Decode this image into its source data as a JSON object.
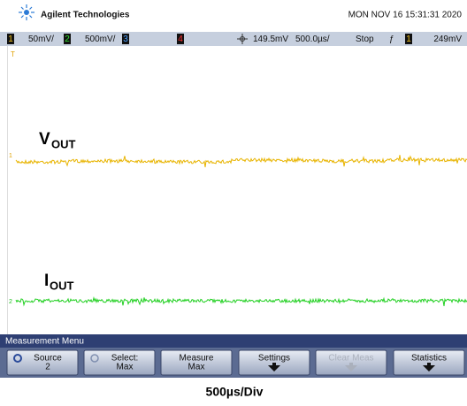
{
  "header": {
    "brand": "Agilent Technologies",
    "datetime": "MON NOV 16 15:31:31 2020"
  },
  "status_bar": {
    "ch1_number": "1",
    "ch1_scale": "50mV/",
    "ch2_number": "2",
    "ch2_scale": "500mV/",
    "ch3_number": "3",
    "ch4_number": "4",
    "trigger_level": "149.5mV",
    "time_scale": "500.0µs/",
    "run_state": "Stop",
    "trigger_slope": "ƒ",
    "trigger_source": "1",
    "trigger_value": "249mV"
  },
  "traces": {
    "trigger_marker": "T",
    "ch1_marker": "1",
    "ch2_marker": "2",
    "vout": {
      "main": "V",
      "sub": "OUT"
    },
    "iout": {
      "main": "I",
      "sub": "OUT"
    }
  },
  "menu": {
    "title": "Measurement Menu",
    "buttons": [
      {
        "lines": [
          "Source",
          "2"
        ]
      },
      {
        "lines": [
          "Select:",
          "Max"
        ]
      },
      {
        "lines": [
          "Measure",
          "Max"
        ]
      },
      {
        "lines": [
          "Settings"
        ]
      },
      {
        "lines": [
          "Clear Meas"
        ]
      },
      {
        "lines": [
          "Statistics"
        ]
      }
    ]
  },
  "caption": "500µs/Div"
}
